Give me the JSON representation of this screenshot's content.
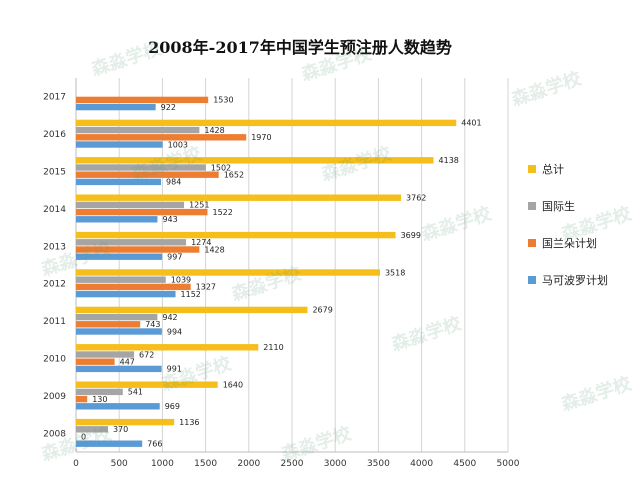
{
  "chart_data": {
    "type": "bar",
    "orientation": "horizontal",
    "title": "2008年-2017年中国学生预注册人数趋势",
    "categories": [
      "2008",
      "2009",
      "2010",
      "2011",
      "2012",
      "2013",
      "2014",
      "2015",
      "2016",
      "2017"
    ],
    "xlim": [
      0,
      5000
    ],
    "xticks": [
      0,
      500,
      1000,
      1500,
      2000,
      2500,
      3000,
      3500,
      4000,
      4500,
      5000
    ],
    "grid": true,
    "legend_position": "right",
    "series": [
      {
        "name": "总计",
        "color": "#F5BE1B",
        "values": [
          1136,
          1640,
          2110,
          2679,
          3518,
          3699,
          3762,
          4138,
          4401,
          null
        ]
      },
      {
        "name": "国际生",
        "color": "#A5A5A5",
        "values": [
          370,
          541,
          672,
          942,
          1039,
          1274,
          1251,
          1502,
          1428,
          null
        ]
      },
      {
        "name": "国兰朵计划",
        "color": "#ED7D31",
        "values": [
          0,
          130,
          447,
          743,
          1327,
          1428,
          1522,
          1652,
          1970,
          1530
        ]
      },
      {
        "name": "马可波罗计划",
        "color": "#5B9BD5",
        "values": [
          766,
          969,
          991,
          994,
          1152,
          997,
          943,
          984,
          1003,
          922
        ]
      }
    ]
  },
  "watermark": {
    "text": "森淼学校"
  }
}
